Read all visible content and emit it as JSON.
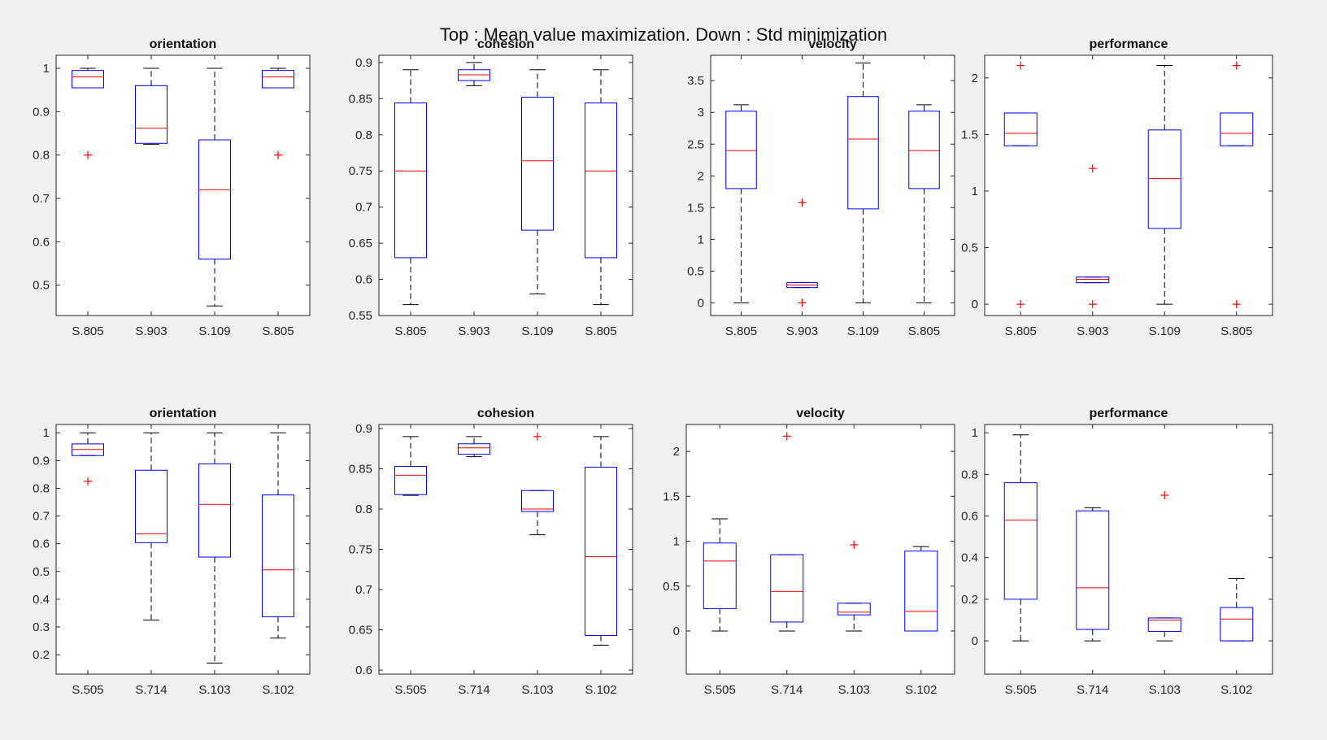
{
  "figure_title": "Top : Mean value maximization. Down : Std minimization",
  "colors": {
    "box": "#0000ff",
    "median": "#ff0000",
    "whisker": "#000000",
    "outlier": "#ff0000",
    "axis_bg": "#ffffff",
    "figure_bg": "#f0f0f0"
  },
  "chart_data": [
    {
      "type": "boxplot",
      "title": "orientation",
      "categories": [
        "S.805",
        "S.903",
        "S.109",
        "S.805"
      ],
      "ylim": [
        0.43,
        1.03
      ],
      "yticks": [
        0.5,
        0.6,
        0.7,
        0.8,
        0.9,
        1
      ],
      "boxes": [
        {
          "q1": 0.955,
          "median": 0.98,
          "q3": 0.995,
          "lower_whisker": 0.955,
          "upper_whisker": 1.0,
          "outliers": [
            0.8
          ]
        },
        {
          "q1": 0.827,
          "median": 0.862,
          "q3": 0.96,
          "lower_whisker": 0.825,
          "upper_whisker": 1.0,
          "outliers": []
        },
        {
          "q1": 0.56,
          "median": 0.72,
          "q3": 0.835,
          "lower_whisker": 0.452,
          "upper_whisker": 1.0,
          "outliers": []
        },
        {
          "q1": 0.955,
          "median": 0.98,
          "q3": 0.995,
          "lower_whisker": 0.955,
          "upper_whisker": 1.0,
          "outliers": [
            0.8
          ]
        }
      ]
    },
    {
      "type": "boxplot",
      "title": "cohesion",
      "categories": [
        "S.805",
        "S.903",
        "S.109",
        "S.805"
      ],
      "ylim": [
        0.55,
        0.91
      ],
      "yticks": [
        0.55,
        0.6,
        0.65,
        0.7,
        0.75,
        0.8,
        0.85,
        0.9
      ],
      "boxes": [
        {
          "q1": 0.63,
          "median": 0.75,
          "q3": 0.844,
          "lower_whisker": 0.565,
          "upper_whisker": 0.89,
          "outliers": []
        },
        {
          "q1": 0.875,
          "median": 0.883,
          "q3": 0.89,
          "lower_whisker": 0.868,
          "upper_whisker": 0.9,
          "outliers": []
        },
        {
          "q1": 0.668,
          "median": 0.764,
          "q3": 0.852,
          "lower_whisker": 0.58,
          "upper_whisker": 0.89,
          "outliers": []
        },
        {
          "q1": 0.63,
          "median": 0.75,
          "q3": 0.844,
          "lower_whisker": 0.565,
          "upper_whisker": 0.89,
          "outliers": []
        }
      ]
    },
    {
      "type": "boxplot",
      "title": "velocity",
      "categories": [
        "S.805",
        "S.903",
        "S.109",
        "S.805"
      ],
      "ylim": [
        -0.2,
        3.9
      ],
      "yticks": [
        0,
        0.5,
        1,
        1.5,
        2,
        2.5,
        3,
        3.5
      ],
      "boxes": [
        {
          "q1": 1.8,
          "median": 2.4,
          "q3": 3.02,
          "lower_whisker": 0,
          "upper_whisker": 3.12,
          "outliers": []
        },
        {
          "q1": 0.24,
          "median": 0.28,
          "q3": 0.32,
          "lower_whisker": 0.24,
          "upper_whisker": 0.32,
          "outliers": [
            1.58,
            0
          ]
        },
        {
          "q1": 1.48,
          "median": 2.58,
          "q3": 3.25,
          "lower_whisker": 0,
          "upper_whisker": 3.78,
          "outliers": []
        },
        {
          "q1": 1.8,
          "median": 2.4,
          "q3": 3.02,
          "lower_whisker": 0,
          "upper_whisker": 3.12,
          "outliers": []
        }
      ]
    },
    {
      "type": "boxplot",
      "title": "performance",
      "categories": [
        "S.805",
        "S.903",
        "S.109",
        "S.805"
      ],
      "ylim": [
        -0.1,
        2.2
      ],
      "yticks": [
        0,
        0.5,
        1,
        1.5,
        2
      ],
      "boxes": [
        {
          "q1": 1.4,
          "median": 1.51,
          "q3": 1.69,
          "lower_whisker": 1.4,
          "upper_whisker": 1.69,
          "outliers": [
            2.11,
            0
          ]
        },
        {
          "q1": 0.19,
          "median": 0.22,
          "q3": 0.24,
          "lower_whisker": 0.19,
          "upper_whisker": 0.24,
          "outliers": [
            1.2,
            0
          ]
        },
        {
          "q1": 0.67,
          "median": 1.11,
          "q3": 1.54,
          "lower_whisker": 0,
          "upper_whisker": 2.11,
          "outliers": []
        },
        {
          "q1": 1.4,
          "median": 1.51,
          "q3": 1.69,
          "lower_whisker": 1.4,
          "upper_whisker": 1.69,
          "outliers": [
            2.11,
            0
          ]
        }
      ]
    },
    {
      "type": "boxplot",
      "title": "orientation",
      "categories": [
        "S.505",
        "S.714",
        "S.103",
        "S.102"
      ],
      "ylim": [
        0.13,
        1.03
      ],
      "yticks": [
        0.2,
        0.3,
        0.4,
        0.5,
        0.6,
        0.7,
        0.8,
        0.9,
        1
      ],
      "boxes": [
        {
          "q1": 0.918,
          "median": 0.94,
          "q3": 0.96,
          "lower_whisker": 0.918,
          "upper_whisker": 1.0,
          "outliers": [
            0.825
          ]
        },
        {
          "q1": 0.604,
          "median": 0.636,
          "q3": 0.865,
          "lower_whisker": 0.325,
          "upper_whisker": 1.0,
          "outliers": []
        },
        {
          "q1": 0.552,
          "median": 0.742,
          "q3": 0.888,
          "lower_whisker": 0.17,
          "upper_whisker": 1.0,
          "outliers": []
        },
        {
          "q1": 0.337,
          "median": 0.506,
          "q3": 0.776,
          "lower_whisker": 0.26,
          "upper_whisker": 1.0,
          "outliers": []
        }
      ]
    },
    {
      "type": "boxplot",
      "title": "cohesion",
      "categories": [
        "S.505",
        "S.714",
        "S.103",
        "S.102"
      ],
      "ylim": [
        0.595,
        0.905
      ],
      "yticks": [
        0.6,
        0.65,
        0.7,
        0.75,
        0.8,
        0.85,
        0.9
      ],
      "boxes": [
        {
          "q1": 0.818,
          "median": 0.842,
          "q3": 0.853,
          "lower_whisker": 0.817,
          "upper_whisker": 0.89,
          "outliers": []
        },
        {
          "q1": 0.868,
          "median": 0.876,
          "q3": 0.881,
          "lower_whisker": 0.865,
          "upper_whisker": 0.89,
          "outliers": []
        },
        {
          "q1": 0.797,
          "median": 0.8,
          "q3": 0.823,
          "lower_whisker": 0.768,
          "upper_whisker": 0.823,
          "outliers": [
            0.89
          ]
        },
        {
          "q1": 0.643,
          "median": 0.741,
          "q3": 0.852,
          "lower_whisker": 0.631,
          "upper_whisker": 0.89,
          "outliers": []
        }
      ]
    },
    {
      "type": "boxplot",
      "title": "velocity",
      "categories": [
        "S.505",
        "S.714",
        "S.103",
        "S.102"
      ],
      "ylim": [
        -0.48,
        2.3
      ],
      "yticks": [
        0,
        0.5,
        1,
        1.5,
        2
      ],
      "boxes": [
        {
          "q1": 0.25,
          "median": 0.78,
          "q3": 0.98,
          "lower_whisker": 0,
          "upper_whisker": 1.25,
          "outliers": []
        },
        {
          "q1": 0.1,
          "median": 0.44,
          "q3": 0.85,
          "lower_whisker": 0,
          "upper_whisker": 0.85,
          "outliers": [
            2.17
          ]
        },
        {
          "q1": 0.18,
          "median": 0.21,
          "q3": 0.31,
          "lower_whisker": 0,
          "upper_whisker": 0.31,
          "outliers": [
            0.96
          ]
        },
        {
          "q1": 0,
          "median": 0.22,
          "q3": 0.89,
          "lower_whisker": 0,
          "upper_whisker": 0.94,
          "outliers": []
        }
      ]
    },
    {
      "type": "boxplot",
      "title": "performance",
      "categories": [
        "S.505",
        "S.714",
        "S.103",
        "S.102"
      ],
      "ylim": [
        -0.16,
        1.04
      ],
      "yticks": [
        0,
        0.2,
        0.4,
        0.6,
        0.8,
        1
      ],
      "boxes": [
        {
          "q1": 0.2,
          "median": 0.58,
          "q3": 0.76,
          "lower_whisker": 0,
          "upper_whisker": 0.99,
          "outliers": []
        },
        {
          "q1": 0.055,
          "median": 0.255,
          "q3": 0.625,
          "lower_whisker": 0,
          "upper_whisker": 0.64,
          "outliers": []
        },
        {
          "q1": 0.045,
          "median": 0.1,
          "q3": 0.11,
          "lower_whisker": 0,
          "upper_whisker": 0.11,
          "outliers": [
            0.7
          ]
        },
        {
          "q1": 0,
          "median": 0.105,
          "q3": 0.16,
          "lower_whisker": 0,
          "upper_whisker": 0.3,
          "outliers": []
        }
      ]
    }
  ]
}
